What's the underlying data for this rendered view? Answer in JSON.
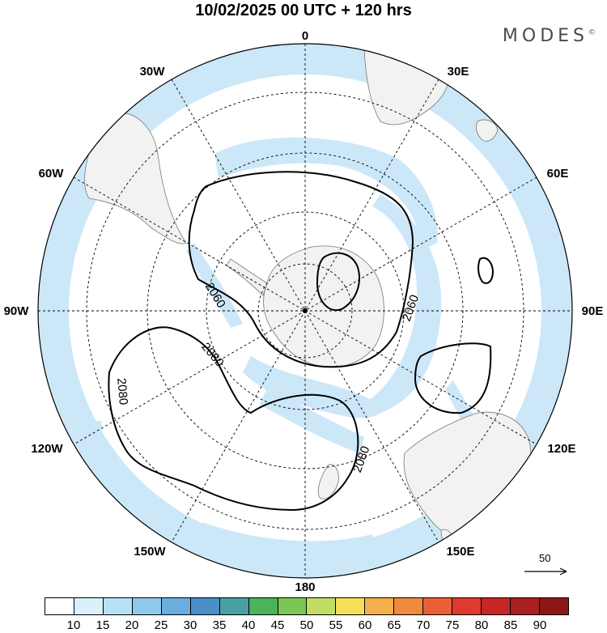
{
  "title": "10/02/2025  00 UTC  + 120 hrs",
  "brand": {
    "name": "MODES",
    "mark": "©"
  },
  "map": {
    "projection": "south-polar-stereographic",
    "longitude_labels": {
      "lon_0": "0",
      "lon_30e": "30E",
      "lon_60e": "60E",
      "lon_90e": "90E",
      "lon_120e": "120E",
      "lon_150e": "150E",
      "lon_180": "180",
      "lon_150w": "150W",
      "lon_120w": "120W",
      "lon_90w": "90W",
      "lon_60w": "60W",
      "lon_30w": "30W"
    },
    "contour_labels": {
      "c1": "2060",
      "c2": "2060",
      "c3": "2080",
      "c4": "2080",
      "c5": "2080"
    },
    "land_color": "#f2f2f2",
    "shade_color": "#cce8f8",
    "contour_color": "#000000"
  },
  "wind_reference": {
    "value": "50"
  },
  "colorbar": {
    "colors": [
      "#ffffff",
      "#d8f1fb",
      "#b6e2f6",
      "#8fc8ec",
      "#6aaedf",
      "#4b8fc9",
      "#4aa0a0",
      "#4cb25b",
      "#7cc653",
      "#c2dd62",
      "#f6e05a",
      "#f3b04c",
      "#f08a3f",
      "#ea5f33",
      "#de3a2d",
      "#c72627",
      "#a8201f",
      "#8a1616"
    ],
    "ticks": [
      "10",
      "15",
      "20",
      "25",
      "30",
      "35",
      "40",
      "45",
      "50",
      "55",
      "60",
      "65",
      "70",
      "75",
      "80",
      "85",
      "90"
    ]
  }
}
